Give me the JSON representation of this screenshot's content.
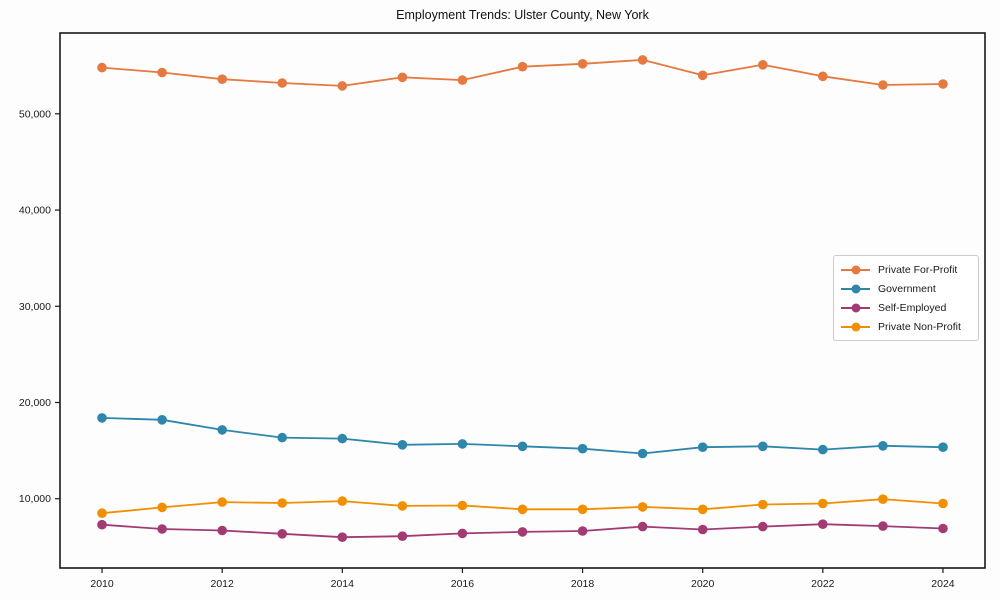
{
  "chart_data": {
    "type": "line",
    "title": "Employment Trends: Ulster County, New York",
    "xlabel": "",
    "ylabel": "",
    "x": [
      2010,
      2011,
      2012,
      2013,
      2014,
      2015,
      2016,
      2017,
      2018,
      2019,
      2020,
      2021,
      2022,
      2023,
      2024
    ],
    "xticks": [
      2010,
      2012,
      2014,
      2016,
      2018,
      2020,
      2022,
      2024
    ],
    "yticks": [
      10000,
      20000,
      30000,
      40000,
      50000
    ],
    "ytick_labels": [
      "10,000",
      "20,000",
      "30,000",
      "40,000",
      "50,000"
    ],
    "xlim": [
      2009.3,
      2024.7
    ],
    "ylim": [
      2800,
      58400
    ],
    "grid": false,
    "legend_position": "center-right",
    "series": [
      {
        "name": "Private For-Profit",
        "color": "#E5793F",
        "values": [
          54800,
          54300,
          53600,
          53200,
          52900,
          53800,
          53500,
          54900,
          55200,
          55600,
          54000,
          55100,
          53900,
          53000,
          53100
        ]
      },
      {
        "name": "Government",
        "color": "#2E86AB",
        "values": [
          18400,
          18200,
          17150,
          16350,
          16250,
          15600,
          15700,
          15450,
          15200,
          14700,
          15350,
          15450,
          15100,
          15500,
          15350
        ]
      },
      {
        "name": "Self-Employed",
        "color": "#A23B72",
        "values": [
          7300,
          6850,
          6700,
          6350,
          6000,
          6100,
          6400,
          6550,
          6650,
          7100,
          6800,
          7100,
          7350,
          7150,
          6900
        ]
      },
      {
        "name": "Private Non-Profit",
        "color": "#F18F01",
        "values": [
          8500,
          9100,
          9650,
          9550,
          9750,
          9250,
          9300,
          8900,
          8900,
          9150,
          8900,
          9400,
          9500,
          9950,
          9500
        ]
      }
    ]
  }
}
